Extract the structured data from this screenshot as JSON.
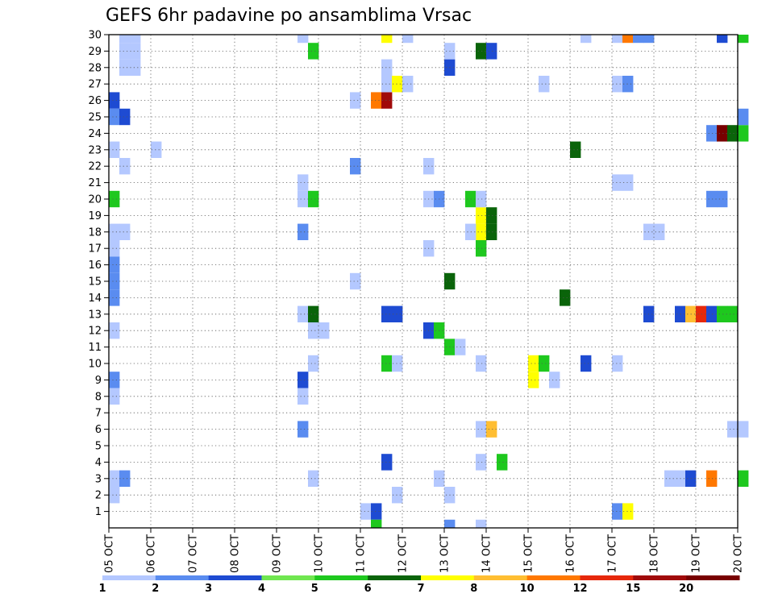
{
  "chart_data": {
    "type": "heatmap",
    "title": "GEFS 6hr padavine po ansamblima Vrsac",
    "x_tick_labels": [
      "05 OCT",
      "06 OCT",
      "07 OCT",
      "08 OCT",
      "09 OCT",
      "10 OCT",
      "11 OCT",
      "12 OCT",
      "13 OCT",
      "14 OCT",
      "15 OCT",
      "16 OCT",
      "17 OCT",
      "18 OCT",
      "19 OCT",
      "20 OCT"
    ],
    "y_tick_labels": [
      "1",
      "2",
      "3",
      "4",
      "5",
      "6",
      "7",
      "8",
      "9",
      "10",
      "11",
      "12",
      "13",
      "14",
      "15",
      "16",
      "17",
      "18",
      "19",
      "20",
      "21",
      "22",
      "23",
      "24",
      "25",
      "26",
      "27",
      "28",
      "29",
      "30"
    ],
    "x_range_days": [
      0,
      15
    ],
    "y_range": [
      0,
      30
    ],
    "time_step_hours": 6,
    "grid": true,
    "legend_placement": "bottom",
    "color_levels": [
      1,
      2,
      3,
      4,
      5,
      6,
      7,
      8,
      10,
      12,
      15,
      20
    ],
    "colors": [
      "#b4c8ff",
      "#5a8cf0",
      "#1e4bd2",
      "#70e650",
      "#1ec81e",
      "#0a640a",
      "#ffff00",
      "#ffbe32",
      "#ff7800",
      "#e6280a",
      "#a00a0a",
      "#780000"
    ],
    "cell_fields": [
      "step",
      "member",
      "class"
    ],
    "cells": [
      [
        1,
        30,
        0
      ],
      [
        2,
        30,
        0
      ],
      [
        1,
        29,
        0
      ],
      [
        1,
        28,
        0
      ],
      [
        2,
        28,
        0
      ],
      [
        0,
        26,
        2
      ],
      [
        0,
        25,
        1
      ],
      [
        1,
        25,
        2
      ],
      [
        0,
        23,
        0
      ],
      [
        1,
        22,
        0
      ],
      [
        0,
        20,
        4
      ],
      [
        0,
        18,
        0
      ],
      [
        1,
        18,
        0
      ],
      [
        0,
        17,
        0
      ],
      [
        0,
        16,
        1
      ],
      [
        0,
        15,
        1
      ],
      [
        0,
        14,
        1
      ],
      [
        0,
        12,
        0
      ],
      [
        0,
        9,
        1
      ],
      [
        0,
        8,
        0
      ],
      [
        0,
        3,
        0
      ],
      [
        1,
        3,
        1
      ],
      [
        0,
        2,
        0
      ],
      [
        2,
        29,
        0
      ],
      [
        4,
        23,
        0
      ],
      [
        18,
        30,
        0
      ],
      [
        19,
        29,
        4
      ],
      [
        18,
        20,
        0
      ],
      [
        19,
        20,
        4
      ],
      [
        18,
        18,
        1
      ],
      [
        18,
        13,
        0
      ],
      [
        19,
        13,
        5
      ],
      [
        19,
        12,
        0
      ],
      [
        20,
        12,
        0
      ],
      [
        19,
        10,
        0
      ],
      [
        18,
        9,
        2
      ],
      [
        18,
        8,
        0
      ],
      [
        18,
        6,
        1
      ],
      [
        19,
        3,
        0
      ],
      [
        18,
        21,
        0
      ],
      [
        24,
        1,
        0
      ],
      [
        25,
        1,
        2
      ],
      [
        25,
        0,
        4
      ],
      [
        23,
        26,
        0
      ],
      [
        25,
        26,
        8
      ],
      [
        26,
        26,
        10
      ],
      [
        23,
        22,
        1
      ],
      [
        23,
        15,
        0
      ],
      [
        26,
        30,
        6
      ],
      [
        26,
        28,
        0
      ],
      [
        26,
        27,
        0
      ],
      [
        27,
        27,
        6
      ],
      [
        28,
        27,
        0
      ],
      [
        26,
        13,
        2
      ],
      [
        27,
        13,
        2
      ],
      [
        26,
        10,
        4
      ],
      [
        27,
        10,
        0
      ],
      [
        26,
        4,
        2
      ],
      [
        27,
        2,
        0
      ],
      [
        28,
        30,
        0
      ],
      [
        30,
        22,
        0
      ],
      [
        30,
        20,
        0
      ],
      [
        31,
        20,
        1
      ],
      [
        30,
        17,
        0
      ],
      [
        30,
        12,
        2
      ],
      [
        31,
        12,
        4
      ],
      [
        31,
        3,
        0
      ],
      [
        32,
        28,
        2
      ],
      [
        32,
        29,
        0
      ],
      [
        32,
        15,
        5
      ],
      [
        32,
        11,
        4
      ],
      [
        33,
        11,
        0
      ],
      [
        32,
        2,
        0
      ],
      [
        32,
        0,
        1
      ],
      [
        35,
        29,
        5
      ],
      [
        36,
        29,
        2
      ],
      [
        35,
        19,
        6
      ],
      [
        36,
        19,
        5
      ],
      [
        35,
        18,
        6
      ],
      [
        36,
        18,
        5
      ],
      [
        34,
        20,
        4
      ],
      [
        35,
        20,
        0
      ],
      [
        34,
        18,
        0
      ],
      [
        35,
        17,
        4
      ],
      [
        35,
        10,
        0
      ],
      [
        35,
        6,
        0
      ],
      [
        36,
        6,
        7
      ],
      [
        35,
        4,
        0
      ],
      [
        37,
        4,
        4
      ],
      [
        35,
        0,
        0
      ],
      [
        40,
        10,
        6
      ],
      [
        41,
        10,
        4
      ],
      [
        40,
        9,
        6
      ],
      [
        42,
        9,
        0
      ],
      [
        41,
        27,
        0
      ],
      [
        43,
        14,
        5
      ],
      [
        44,
        23,
        5
      ],
      [
        45,
        30,
        0
      ],
      [
        45,
        10,
        2
      ],
      [
        48,
        30,
        0
      ],
      [
        49,
        30,
        8
      ],
      [
        50,
        30,
        1
      ],
      [
        48,
        27,
        0
      ],
      [
        49,
        27,
        1
      ],
      [
        48,
        21,
        0
      ],
      [
        49,
        21,
        0
      ],
      [
        48,
        10,
        0
      ],
      [
        48,
        1,
        1
      ],
      [
        49,
        1,
        6
      ],
      [
        51,
        30,
        1
      ],
      [
        51,
        18,
        0
      ],
      [
        52,
        18,
        0
      ],
      [
        51,
        13,
        2
      ],
      [
        53,
        3,
        0
      ],
      [
        54,
        3,
        0
      ],
      [
        55,
        3,
        2
      ],
      [
        54,
        13,
        2
      ],
      [
        55,
        13,
        7
      ],
      [
        56,
        13,
        9
      ],
      [
        57,
        13,
        2
      ],
      [
        58,
        13,
        4
      ],
      [
        59,
        13,
        4
      ],
      [
        57,
        24,
        1
      ],
      [
        58,
        24,
        11
      ],
      [
        59,
        24,
        5
      ],
      [
        60,
        24,
        4
      ],
      [
        57,
        20,
        1
      ],
      [
        58,
        20,
        1
      ],
      [
        58,
        30,
        2
      ],
      [
        57,
        3,
        8
      ],
      [
        59,
        6,
        0
      ],
      [
        60,
        6,
        0
      ],
      [
        60,
        25,
        1
      ],
      [
        60,
        30,
        4
      ],
      [
        60,
        3,
        4
      ]
    ]
  }
}
